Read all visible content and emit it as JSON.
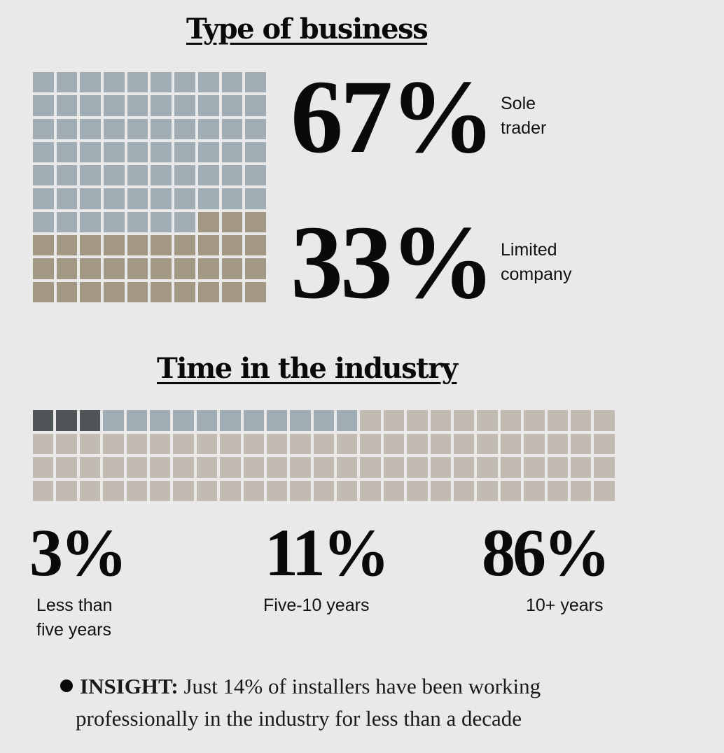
{
  "chart_data": [
    {
      "type": "waffle",
      "title": "Type of business",
      "grid": {
        "rows": 10,
        "cols": 10
      },
      "categories": [
        "Sole trader",
        "Limited company"
      ],
      "values": [
        67,
        33
      ],
      "colors": [
        "#a1adb4",
        "#a39883"
      ],
      "labels": [
        {
          "value": "67%",
          "text1": "Sole",
          "text2": "trader"
        },
        {
          "value": "33%",
          "text1": "Limited",
          "text2": "company"
        }
      ]
    },
    {
      "type": "waffle",
      "title": "Time in the industry",
      "grid": {
        "rows": 4,
        "cols": 25
      },
      "categories": [
        "Less than five years",
        "Five-10 years",
        "10+ years"
      ],
      "values": [
        3,
        11,
        86
      ],
      "colors": [
        "#4f5557",
        "#a1adb4",
        "#c2bbb1"
      ],
      "labels": [
        {
          "value": "3%",
          "text1": "Less than",
          "text2": "five years"
        },
        {
          "value": "11%",
          "text1": "Five-10 years"
        },
        {
          "value": "86%",
          "text1": "10+ years"
        }
      ]
    }
  ],
  "insight": {
    "head": "INSIGHT:",
    "line1": "Just 14% of installers have been working",
    "line2": "professionally in the industry for less than a decade"
  }
}
